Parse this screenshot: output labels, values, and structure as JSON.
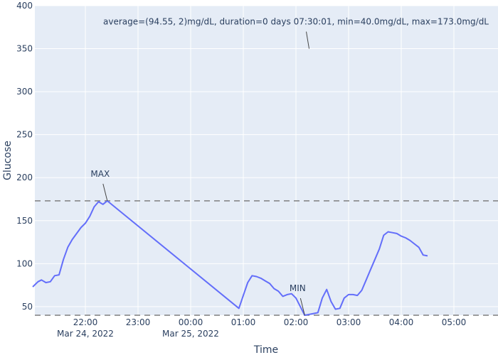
{
  "chart_data": {
    "type": "line",
    "xlabel": "Time",
    "ylabel": "Glucose",
    "ylim": [
      40,
      400
    ],
    "x_tick_labels": [
      {
        "t": "2022-03-24T22:00",
        "lines": [
          "22:00",
          "Mar 24, 2022"
        ]
      },
      {
        "t": "2022-03-24T23:00",
        "lines": [
          "23:00"
        ]
      },
      {
        "t": "2022-03-25T00:00",
        "lines": [
          "00:00",
          "Mar 25, 2022"
        ]
      },
      {
        "t": "2022-03-25T01:00",
        "lines": [
          "01:00"
        ]
      },
      {
        "t": "2022-03-25T02:00",
        "lines": [
          "02:00"
        ]
      },
      {
        "t": "2022-03-25T03:00",
        "lines": [
          "03:00"
        ]
      },
      {
        "t": "2022-03-25T04:00",
        "lines": [
          "04:00"
        ]
      },
      {
        "t": "2022-03-25T05:00",
        "lines": [
          "05:00"
        ]
      }
    ],
    "y_ticks": [
      50,
      100,
      150,
      200,
      250,
      300,
      350,
      400
    ],
    "grid": true,
    "series": [
      {
        "color": "#636efa",
        "points": [
          [
            "2022-03-24T21:00",
            73
          ],
          [
            "2022-03-24T21:06",
            79
          ],
          [
            "2022-03-24T21:10",
            81
          ],
          [
            "2022-03-24T21:15",
            78
          ],
          [
            "2022-03-24T21:20",
            79
          ],
          [
            "2022-03-24T21:25",
            86
          ],
          [
            "2022-03-24T21:30",
            87
          ],
          [
            "2022-03-24T21:35",
            105
          ],
          [
            "2022-03-24T21:40",
            119
          ],
          [
            "2022-03-24T21:45",
            128
          ],
          [
            "2022-03-24T21:50",
            135
          ],
          [
            "2022-03-24T21:55",
            142
          ],
          [
            "2022-03-24T22:00",
            147
          ],
          [
            "2022-03-24T22:05",
            155
          ],
          [
            "2022-03-24T22:10",
            166
          ],
          [
            "2022-03-24T22:15",
            172
          ],
          [
            "2022-03-24T22:20",
            169
          ],
          [
            "2022-03-24T22:25",
            173
          ],
          [
            "2022-03-25T00:55",
            48
          ],
          [
            "2022-03-25T01:00",
            63
          ],
          [
            "2022-03-25T01:05",
            78
          ],
          [
            "2022-03-25T01:10",
            86
          ],
          [
            "2022-03-25T01:15",
            85
          ],
          [
            "2022-03-25T01:20",
            83
          ],
          [
            "2022-03-25T01:25",
            80
          ],
          [
            "2022-03-25T01:30",
            77
          ],
          [
            "2022-03-25T01:35",
            71
          ],
          [
            "2022-03-25T01:40",
            68
          ],
          [
            "2022-03-25T01:45",
            62
          ],
          [
            "2022-03-25T01:50",
            64
          ],
          [
            "2022-03-25T01:55",
            65
          ],
          [
            "2022-03-25T02:00",
            60
          ],
          [
            "2022-03-25T02:05",
            50
          ],
          [
            "2022-03-25T02:10",
            40
          ],
          [
            "2022-03-25T02:15",
            41
          ],
          [
            "2022-03-25T02:20",
            42
          ],
          [
            "2022-03-25T02:25",
            43
          ],
          [
            "2022-03-25T02:30",
            60
          ],
          [
            "2022-03-25T02:35",
            70
          ],
          [
            "2022-03-25T02:40",
            56
          ],
          [
            "2022-03-25T02:45",
            47
          ],
          [
            "2022-03-25T02:50",
            48
          ],
          [
            "2022-03-25T02:55",
            60
          ],
          [
            "2022-03-25T03:00",
            64
          ],
          [
            "2022-03-25T03:05",
            64
          ],
          [
            "2022-03-25T03:10",
            63
          ],
          [
            "2022-03-25T03:15",
            69
          ],
          [
            "2022-03-25T03:20",
            81
          ],
          [
            "2022-03-25T03:25",
            93
          ],
          [
            "2022-03-25T03:30",
            105
          ],
          [
            "2022-03-25T03:35",
            117
          ],
          [
            "2022-03-25T03:40",
            133
          ],
          [
            "2022-03-25T03:45",
            137
          ],
          [
            "2022-03-25T03:50",
            136
          ],
          [
            "2022-03-25T03:55",
            135
          ],
          [
            "2022-03-25T04:00",
            132
          ],
          [
            "2022-03-25T04:05",
            130
          ],
          [
            "2022-03-25T04:10",
            127
          ],
          [
            "2022-03-25T04:15",
            123
          ],
          [
            "2022-03-25T04:20",
            119
          ],
          [
            "2022-03-25T04:25",
            110
          ],
          [
            "2022-03-25T04:30",
            109
          ]
        ]
      }
    ],
    "hlines": [
      {
        "value": 173,
        "dash": true
      },
      {
        "value": 40,
        "dash": true
      }
    ],
    "annotations": [
      {
        "text": "MAX",
        "t": "2022-03-24T22:25",
        "y": 173,
        "arrow": true,
        "anchor": "above"
      },
      {
        "text": "MIN",
        "t": "2022-03-25T02:10",
        "y": 40,
        "arrow": true,
        "anchor": "above"
      },
      {
        "text": "average=(94.55, 2)mg/dL, duration=0 days 07:30:01, min=40.0mg/dL, max=173.0mg/dL",
        "t": "2022-03-25T02:15",
        "y": 350,
        "arrow": true,
        "anchor": "above"
      }
    ]
  }
}
